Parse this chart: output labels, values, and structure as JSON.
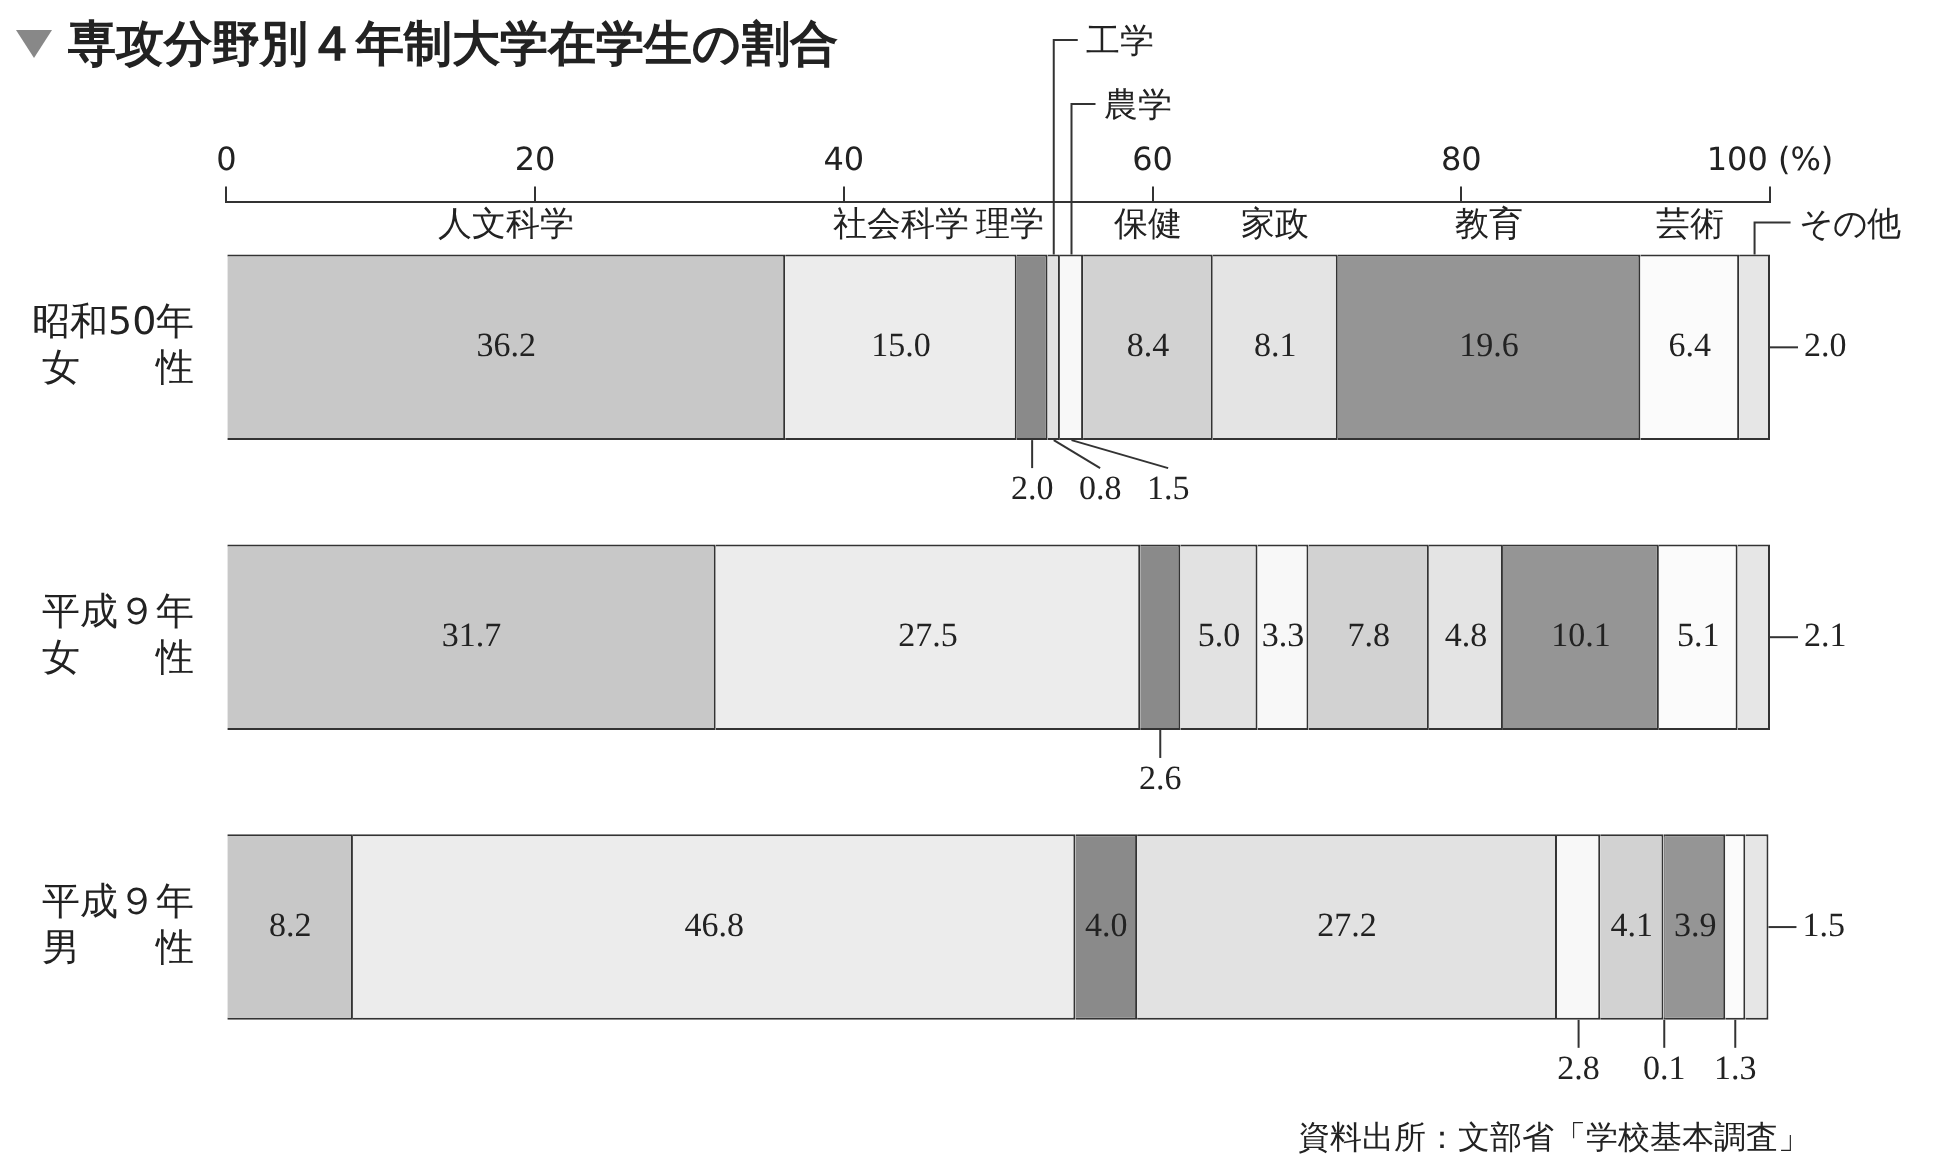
{
  "chart_data": {
    "type": "bar",
    "orientation": "horizontal",
    "stacked": true,
    "title": "専攻分野別４年制大学在学生の割合",
    "categories": [
      [
        "昭和50年",
        "女　　性"
      ],
      [
        "平成９年",
        "女　　性"
      ],
      [
        "平成９年",
        "男　　性"
      ]
    ],
    "series": [
      {
        "name": "人文科学",
        "color": "#c8c8c8",
        "values": [
          36.2,
          31.7,
          8.2
        ],
        "value_labels": [
          "36.2",
          "31.7",
          "8.2"
        ]
      },
      {
        "name": "社会科学",
        "color": "#ececec",
        "values": [
          15.0,
          27.5,
          46.8
        ],
        "value_labels": [
          "15.0",
          "27.5",
          "46.8"
        ]
      },
      {
        "name": "理学",
        "color": "#8a8a8a",
        "values": [
          2.0,
          2.6,
          4.0
        ],
        "value_labels": [
          "2.0",
          "2.6",
          "4.0"
        ]
      },
      {
        "name": "工学",
        "color": "#e2e2e2",
        "values": [
          0.8,
          5.0,
          27.2
        ],
        "value_labels": [
          "0.8",
          "5.0",
          "27.2"
        ]
      },
      {
        "name": "農学",
        "color": "#f8f8f8",
        "values": [
          1.5,
          3.3,
          2.8
        ],
        "value_labels": [
          "1.5",
          "3.3",
          "2.8"
        ]
      },
      {
        "name": "保健",
        "color": "#d2d2d2",
        "values": [
          8.4,
          7.8,
          4.1
        ],
        "value_labels": [
          "8.4",
          "7.8",
          "4.1"
        ]
      },
      {
        "name": "家政",
        "color": "#e4e4e4",
        "values": [
          8.1,
          4.8,
          0.1
        ],
        "value_labels": [
          "8.1",
          "4.8",
          "0.1"
        ]
      },
      {
        "name": "教育",
        "color": "#959595",
        "values": [
          19.6,
          10.1,
          3.9
        ],
        "value_labels": [
          "19.6",
          "10.1",
          "3.9"
        ]
      },
      {
        "name": "芸術",
        "color": "#fbfbfb",
        "values": [
          6.4,
          5.1,
          1.3
        ],
        "value_labels": [
          "6.4",
          "5.1",
          "1.3"
        ]
      },
      {
        "name": "その他",
        "color": "#e6e6e6",
        "values": [
          2.0,
          2.1,
          1.5
        ],
        "value_labels": [
          "2.0",
          "2.1",
          "1.5"
        ]
      }
    ],
    "xlim": [
      0,
      100
    ],
    "xticks": [
      0,
      20,
      40,
      60,
      80,
      {
        "value": 100,
        "label": "100 (%)"
      }
    ],
    "grid": false,
    "legend": "top",
    "annotations": [
      "資料出所：文部省「学校基本調査」"
    ]
  }
}
